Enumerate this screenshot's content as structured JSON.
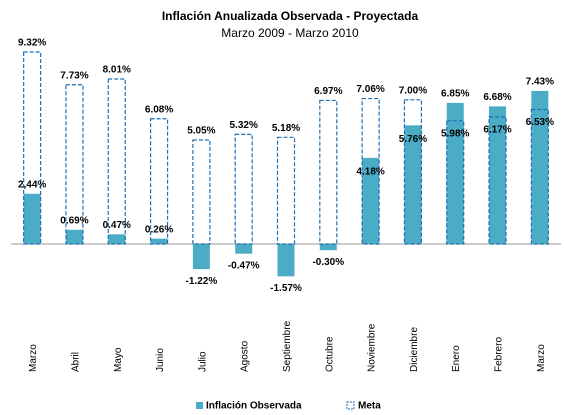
{
  "chart_data": {
    "type": "bar",
    "title": "Inflación Anualizada Observada - Proyectada",
    "subtitle": "Marzo 2009 - Marzo 2010",
    "categories": [
      "Marzo",
      "Abril",
      "Mayo",
      "Junio",
      "Julio",
      "Agosto",
      "Septiembre",
      "Octubre",
      "Noviembre",
      "Diciembre",
      "Enero",
      "Febrero",
      "Marzo"
    ],
    "series": [
      {
        "name": "Inflación Observada",
        "color": "#4bacc6",
        "style": "filled",
        "values": [
          2.44,
          0.69,
          0.47,
          0.26,
          -1.22,
          -0.47,
          -1.57,
          -0.3,
          4.18,
          5.76,
          6.85,
          6.68,
          7.43
        ],
        "value_labels": [
          "2,44%",
          "0.69%",
          "0.47%",
          "0.26%",
          "-1.22%",
          "-0.47%",
          "-1.57%",
          "-0.30%",
          "4.18%",
          "5.76%",
          "6.85%",
          "6.68%",
          "7.43%"
        ]
      },
      {
        "name": "Meta",
        "color": "#1f6fb5",
        "style": "dashed",
        "values": [
          9.32,
          7.73,
          8.01,
          6.08,
          5.05,
          5.32,
          5.18,
          6.97,
          7.06,
          7.0,
          5.98,
          6.17,
          6.53
        ],
        "value_labels": [
          "9.32%",
          "7.73%",
          "8.01%",
          "6.08%",
          "5.05%",
          "5.32%",
          "5.18%",
          "6.97%",
          "7.06%",
          "7.00%",
          "5.98%",
          "6.17%",
          "6.53%"
        ]
      }
    ],
    "legend": "bottom"
  }
}
